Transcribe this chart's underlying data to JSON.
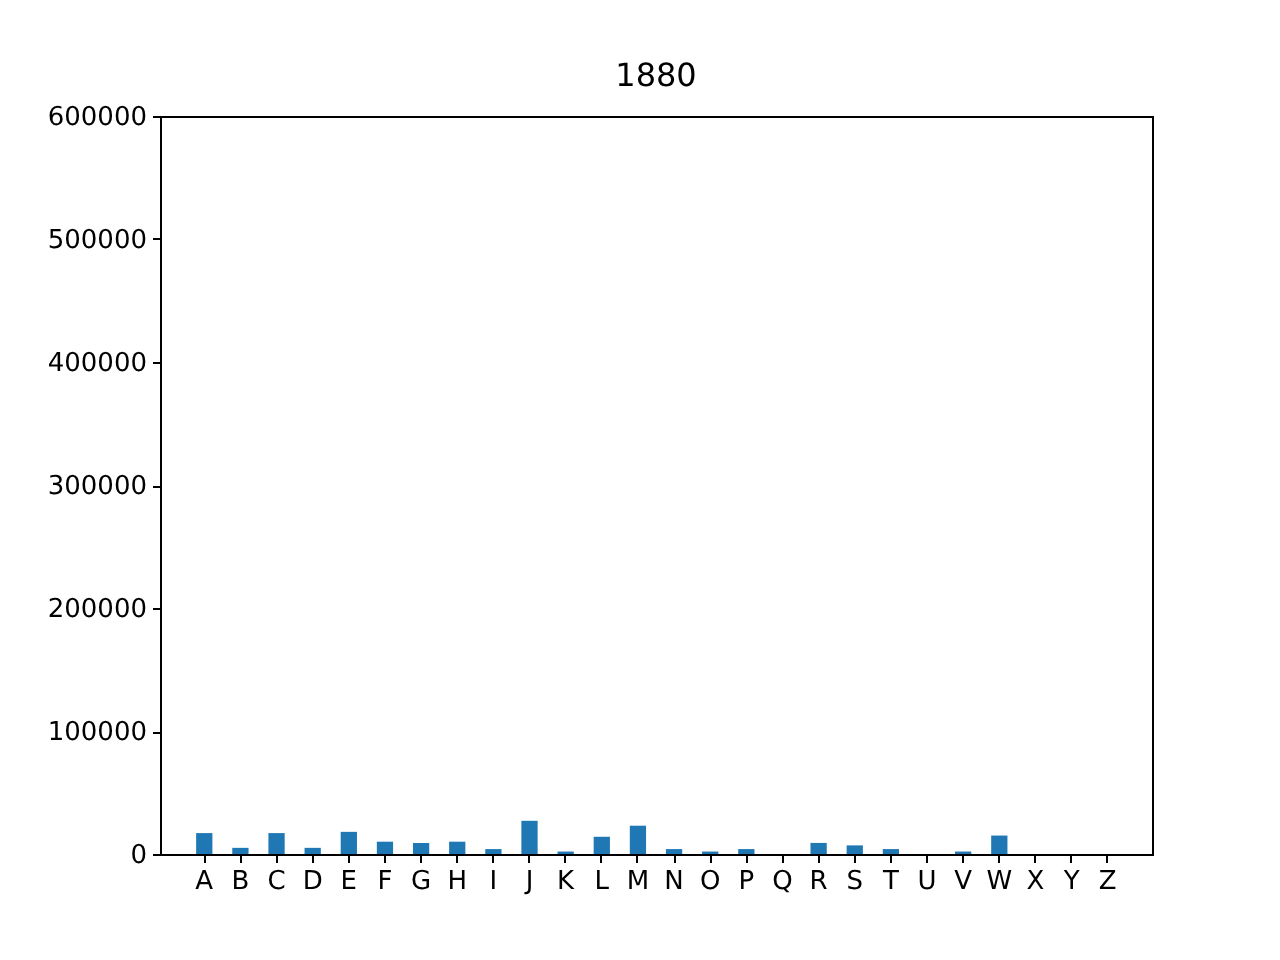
{
  "chart_data": {
    "type": "bar",
    "title": "1880",
    "categories": [
      "A",
      "B",
      "C",
      "D",
      "E",
      "F",
      "G",
      "H",
      "I",
      "J",
      "K",
      "L",
      "M",
      "N",
      "O",
      "P",
      "Q",
      "R",
      "S",
      "T",
      "U",
      "V",
      "W",
      "X",
      "Y",
      "Z"
    ],
    "values": [
      17000,
      5000,
      17000,
      5000,
      18000,
      10000,
      9000,
      10000,
      4000,
      27000,
      2000,
      14000,
      23000,
      4000,
      2000,
      4000,
      0,
      9000,
      7000,
      4000,
      0,
      2000,
      15000,
      0,
      0,
      0
    ],
    "color": "#1f77b4",
    "ylim": [
      0,
      600000
    ],
    "yticks": [
      0,
      100000,
      200000,
      300000,
      400000,
      500000,
      600000
    ],
    "grid": false,
    "legend": false
  }
}
